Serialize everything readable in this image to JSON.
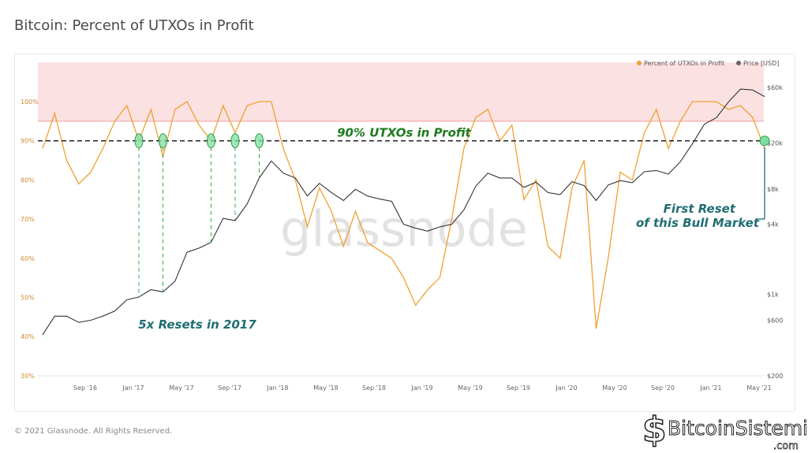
{
  "title": "Bitcoin: Percent of UTXOs in Profit",
  "footer": "© 2021 Glassnode. All Rights Reserved.",
  "watermark": "glassnode",
  "logo_text": "BitcoinSistemi",
  "logo_suffix": ".com",
  "chart_data": {
    "type": "line",
    "title": "Bitcoin: Percent of UTXOs in Profit",
    "legend": {
      "placement": "top-right",
      "entries": [
        "Percent of UTXOs in Profit",
        "Price [USD]"
      ]
    },
    "grid": false,
    "x_ticks": [
      "Sep '16",
      "Jan '17",
      "May '17",
      "Sep '17",
      "Jan '18",
      "May '18",
      "Sep '18",
      "Jan '19",
      "May '19",
      "Sep '19",
      "Jan '20",
      "May '20",
      "Sep '20",
      "Jan '21",
      "May '21"
    ],
    "y_left": {
      "ticks": [
        "30%",
        "40%",
        "50%",
        "60%",
        "70%",
        "80%",
        "90%",
        "100%"
      ],
      "range": [
        30,
        110
      ]
    },
    "y_right": {
      "scale": "log",
      "ticks": [
        "$200",
        "$600",
        "$1k",
        "$4k",
        "$8k",
        "$20k",
        "$60k"
      ],
      "tick_values": [
        200,
        600,
        1000,
        4000,
        8000,
        20000,
        60000
      ],
      "range": [
        200,
        60000
      ]
    },
    "highlight_band": {
      "from": 95,
      "to": 110,
      "color": "#fbe1e1"
    },
    "threshold_line": {
      "value": 90,
      "label": "90% UTXOs in Profit"
    },
    "colors": {
      "percent": "#f0a030",
      "price": "#333333",
      "annotation_green": "#1e7a1e",
      "annotation_teal": "#1f6e72",
      "reset_marker": "#7ee0a0"
    },
    "series": [
      {
        "name": "Percent of UTXOs in Profit",
        "axis": "left",
        "points": [
          [
            "2016-05",
            88
          ],
          [
            "2016-06",
            97
          ],
          [
            "2016-07",
            85
          ],
          [
            "2016-08",
            79
          ],
          [
            "2016-09",
            82
          ],
          [
            "2016-10",
            88
          ],
          [
            "2016-11",
            95
          ],
          [
            "2016-12",
            99
          ],
          [
            "2017-01",
            90
          ],
          [
            "2017-02",
            98
          ],
          [
            "2017-03",
            86
          ],
          [
            "2017-04",
            98
          ],
          [
            "2017-05",
            100
          ],
          [
            "2017-06",
            94
          ],
          [
            "2017-07",
            90
          ],
          [
            "2017-08",
            99
          ],
          [
            "2017-09",
            92
          ],
          [
            "2017-10",
            99
          ],
          [
            "2017-11",
            100
          ],
          [
            "2017-12",
            100
          ],
          [
            "2018-01",
            88
          ],
          [
            "2018-02",
            80
          ],
          [
            "2018-03",
            68
          ],
          [
            "2018-04",
            78
          ],
          [
            "2018-05",
            72
          ],
          [
            "2018-06",
            63
          ],
          [
            "2018-07",
            72
          ],
          [
            "2018-08",
            64
          ],
          [
            "2018-09",
            62
          ],
          [
            "2018-10",
            60
          ],
          [
            "2018-11",
            55
          ],
          [
            "2018-12",
            48
          ],
          [
            "2019-01",
            52
          ],
          [
            "2019-02",
            55
          ],
          [
            "2019-03",
            70
          ],
          [
            "2019-04",
            88
          ],
          [
            "2019-05",
            96
          ],
          [
            "2019-06",
            98
          ],
          [
            "2019-07",
            90
          ],
          [
            "2019-08",
            94
          ],
          [
            "2019-09",
            75
          ],
          [
            "2019-10",
            80
          ],
          [
            "2019-11",
            63
          ],
          [
            "2019-12",
            60
          ],
          [
            "2020-01",
            78
          ],
          [
            "2020-02",
            85
          ],
          [
            "2020-03",
            42
          ],
          [
            "2020-04",
            60
          ],
          [
            "2020-05",
            82
          ],
          [
            "2020-06",
            80
          ],
          [
            "2020-07",
            92
          ],
          [
            "2020-08",
            98
          ],
          [
            "2020-09",
            88
          ],
          [
            "2020-10",
            95
          ],
          [
            "2020-11",
            100
          ],
          [
            "2020-12",
            100
          ],
          [
            "2021-01",
            100
          ],
          [
            "2021-02",
            98
          ],
          [
            "2021-03",
            99
          ],
          [
            "2021-04",
            96
          ],
          [
            "2021-05",
            88
          ]
        ]
      },
      {
        "name": "Price [USD]",
        "axis": "right",
        "points": [
          [
            "2016-05",
            450
          ],
          [
            "2016-06",
            650
          ],
          [
            "2016-07",
            650
          ],
          [
            "2016-08",
            575
          ],
          [
            "2016-09",
            600
          ],
          [
            "2016-10",
            650
          ],
          [
            "2016-11",
            720
          ],
          [
            "2016-12",
            900
          ],
          [
            "2017-01",
            950
          ],
          [
            "2017-02",
            1100
          ],
          [
            "2017-03",
            1050
          ],
          [
            "2017-04",
            1300
          ],
          [
            "2017-05",
            2300
          ],
          [
            "2017-06",
            2500
          ],
          [
            "2017-07",
            2800
          ],
          [
            "2017-08",
            4500
          ],
          [
            "2017-09",
            4300
          ],
          [
            "2017-10",
            6000
          ],
          [
            "2017-11",
            10000
          ],
          [
            "2017-12",
            14000
          ],
          [
            "2018-01",
            11000
          ],
          [
            "2018-02",
            10000
          ],
          [
            "2018-03",
            7000
          ],
          [
            "2018-04",
            9000
          ],
          [
            "2018-05",
            7500
          ],
          [
            "2018-06",
            6400
          ],
          [
            "2018-07",
            8000
          ],
          [
            "2018-08",
            7000
          ],
          [
            "2018-09",
            6600
          ],
          [
            "2018-10",
            6300
          ],
          [
            "2018-11",
            4000
          ],
          [
            "2018-12",
            3700
          ],
          [
            "2019-01",
            3500
          ],
          [
            "2019-02",
            3800
          ],
          [
            "2019-03",
            4000
          ],
          [
            "2019-04",
            5300
          ],
          [
            "2019-05",
            8500
          ],
          [
            "2019-06",
            11000
          ],
          [
            "2019-07",
            10000
          ],
          [
            "2019-08",
            10000
          ],
          [
            "2019-09",
            8300
          ],
          [
            "2019-10",
            9200
          ],
          [
            "2019-11",
            7500
          ],
          [
            "2019-12",
            7200
          ],
          [
            "2020-01",
            9300
          ],
          [
            "2020-02",
            8600
          ],
          [
            "2020-03",
            6400
          ],
          [
            "2020-04",
            8700
          ],
          [
            "2020-05",
            9500
          ],
          [
            "2020-06",
            9100
          ],
          [
            "2020-07",
            11300
          ],
          [
            "2020-08",
            11600
          ],
          [
            "2020-09",
            10800
          ],
          [
            "2020-10",
            13800
          ],
          [
            "2020-11",
            19700
          ],
          [
            "2020-12",
            29000
          ],
          [
            "2021-01",
            33000
          ],
          [
            "2021-02",
            45000
          ],
          [
            "2021-03",
            58000
          ],
          [
            "2021-04",
            57000
          ],
          [
            "2021-05",
            50000
          ]
        ]
      }
    ],
    "annotations": [
      {
        "text": "90% UTXOs in Profit",
        "color": "#1e7a1e"
      },
      {
        "text": "5x Resets in 2017",
        "color": "#1f6e72",
        "resets": [
          "2017-01",
          "2017-03",
          "2017-07",
          "2017-09",
          "2017-11"
        ]
      },
      {
        "text": [
          "First Reset",
          "of this Bull Market"
        ],
        "color": "#1f6e72",
        "resets": [
          "2021-05"
        ]
      }
    ]
  }
}
